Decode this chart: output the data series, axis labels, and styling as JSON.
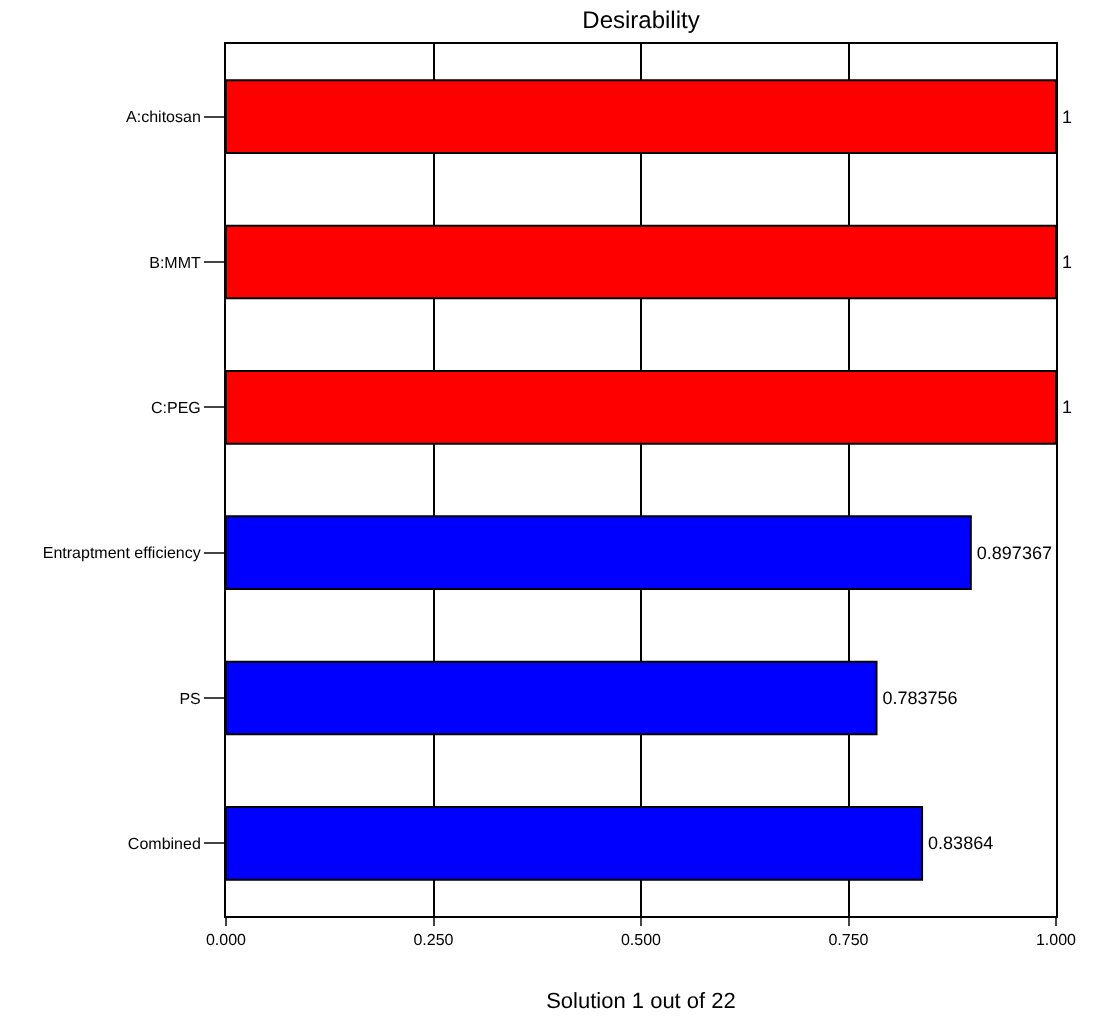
{
  "chart_data": {
    "type": "bar",
    "orientation": "horizontal",
    "title": "Desirability",
    "xlabel": "Solution 1 out of 22",
    "categories": [
      "A:chitosan",
      "B:MMT",
      "C:PEG",
      "Entraptment efficiency",
      "PS",
      "Combined"
    ],
    "values": [
      1,
      1,
      1,
      0.897367,
      0.783756,
      0.83864
    ],
    "colors": [
      "#ff0000",
      "#ff0000",
      "#ff0000",
      "#0000ff",
      "#0000ff",
      "#0000ff"
    ],
    "xlim": [
      0,
      1
    ],
    "xticks": [
      {
        "value": 0,
        "label": "0.000"
      },
      {
        "value": 0.25,
        "label": "0.250"
      },
      {
        "value": 0.5,
        "label": "0.500"
      },
      {
        "value": 0.75,
        "label": "0.750"
      },
      {
        "value": 1,
        "label": "1.000"
      }
    ],
    "data_labels": true,
    "grid": "x",
    "legend": false
  }
}
